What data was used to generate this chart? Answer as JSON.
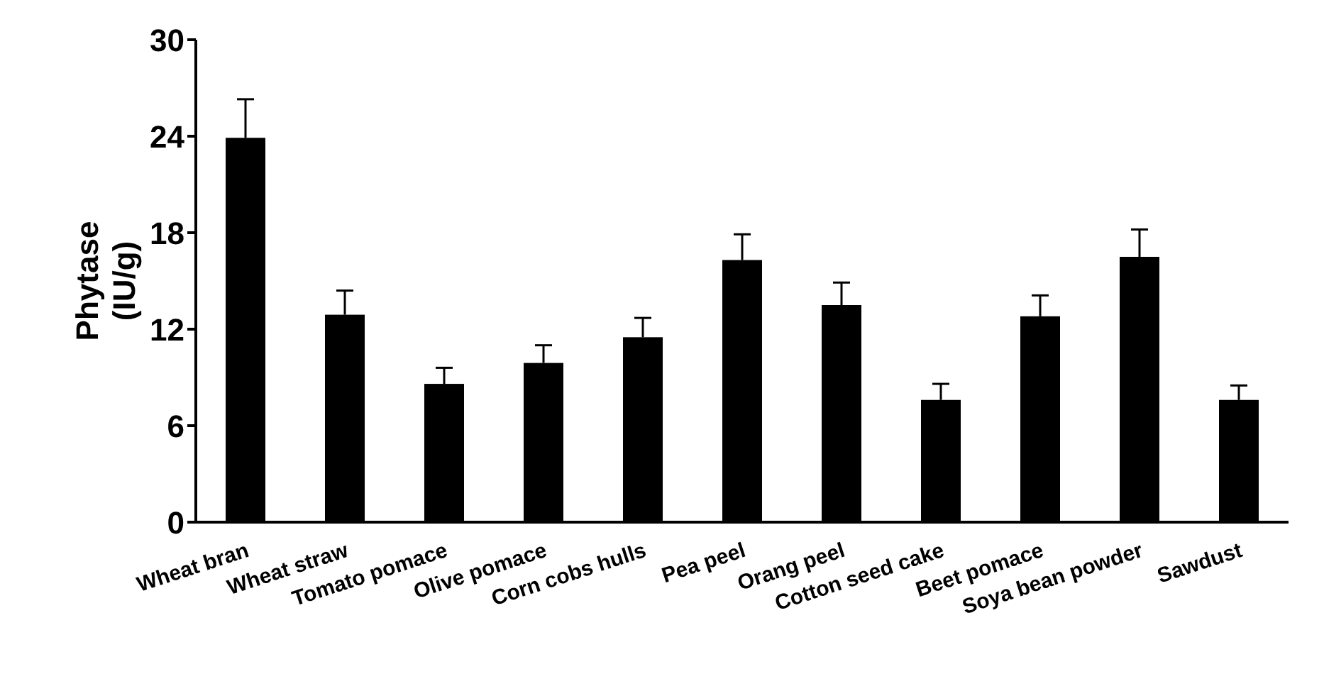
{
  "chart_data": {
    "type": "bar",
    "ylabel": "Phytase (IU/g)",
    "categories": [
      "Wheat bran",
      "Wheat straw",
      "Tomato pomace",
      "Olive pomace",
      "Corn cobs hulls",
      "Pea peel",
      "Orang peel",
      "Cotton seed cake",
      "Beet pomace",
      "Soya bean powder",
      "Sawdust"
    ],
    "values": [
      23.9,
      12.9,
      8.6,
      9.9,
      11.5,
      16.3,
      13.5,
      7.6,
      12.8,
      16.5,
      7.6
    ],
    "errors": [
      [
        23.9,
        26.3
      ],
      [
        12.9,
        14.4
      ],
      [
        8.6,
        9.6
      ],
      [
        9.9,
        11.0
      ],
      [
        11.5,
        12.7
      ],
      [
        16.3,
        17.9
      ],
      [
        13.5,
        14.9
      ],
      [
        7.6,
        8.6
      ],
      [
        12.8,
        14.1
      ],
      [
        16.5,
        18.2
      ],
      [
        7.6,
        8.5
      ]
    ],
    "color": "#000000",
    "ylim": [
      0,
      30
    ],
    "yticks": [
      0,
      6,
      12,
      18,
      24,
      30
    ],
    "grid": false,
    "legend": false
  }
}
